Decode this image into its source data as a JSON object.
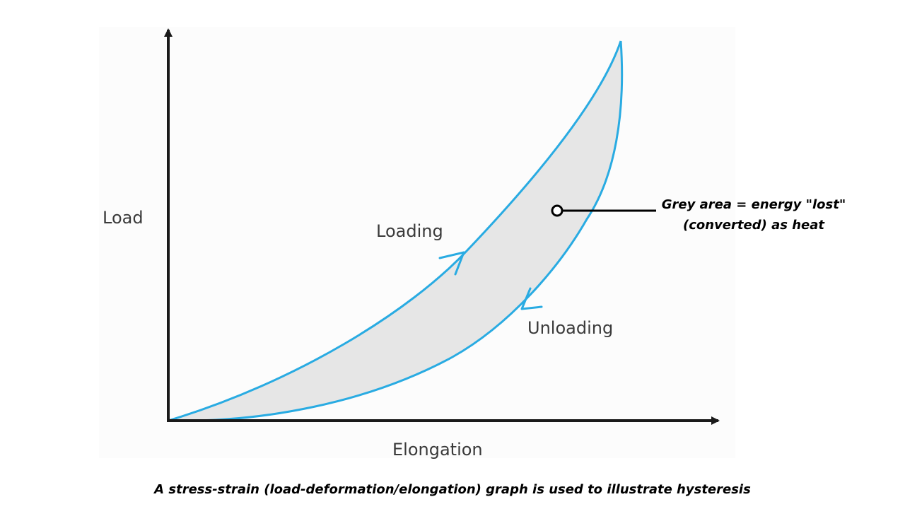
{
  "diagram": {
    "axes": {
      "y_label": "Load",
      "x_label": "Elongation"
    },
    "curves": {
      "loading_label": "Loading",
      "unloading_label": "Unloading"
    },
    "annotation": {
      "line1": "Grey area = energy \"lost\"",
      "line2": "(converted) as heat"
    },
    "caption": "A stress-strain (load-deformation/elongation) graph is used to illustrate hysteresis",
    "colors": {
      "curve": "#29abe2",
      "fill": "#e6e6e6",
      "axis": "#1a1a1a",
      "pointer": "#000000"
    }
  }
}
